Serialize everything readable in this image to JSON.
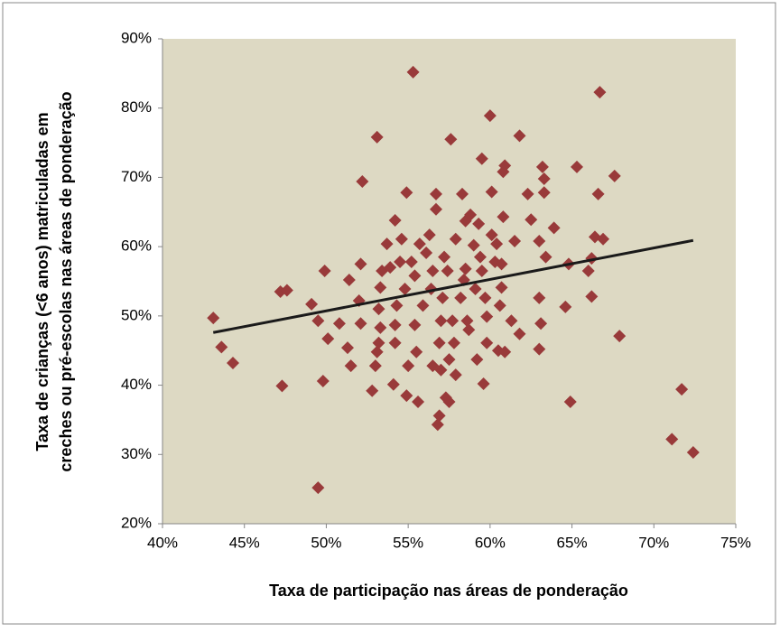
{
  "chart_data": {
    "type": "scatter",
    "xlabel": "Taxa de participação nas áreas de ponderação",
    "ylabel": [
      "Taxa de crianças (<6 anos) matriculadas em",
      "creches ou pré-escolas nas áreas de ponderação"
    ],
    "color": "#993a3a",
    "x": [
      43.1,
      43.6,
      44.3,
      47.3,
      47.2,
      47.6,
      49.5,
      49.8,
      49.9,
      49.1,
      49.5,
      50.1,
      50.8,
      51.3,
      51.5,
      51.4,
      52.1,
      52.2,
      52.0,
      52.1,
      52.8,
      53.1,
      53.0,
      53.1,
      53.2,
      53.3,
      53.2,
      53.3,
      53.4,
      53.7,
      53.9,
      54.1,
      54.3,
      54.2,
      54.2,
      54.2,
      54.5,
      54.6,
      54.8,
      54.9,
      54.9,
      55.0,
      55.2,
      55.3,
      55.4,
      55.5,
      55.4,
      55.6,
      55.7,
      55.9,
      56.1,
      56.3,
      56.4,
      56.5,
      56.5,
      56.7,
      56.7,
      56.8,
      56.9,
      57.0,
      56.9,
      57.0,
      57.1,
      57.2,
      57.4,
      57.3,
      57.5,
      57.5,
      57.6,
      57.7,
      57.9,
      57.8,
      57.9,
      58.2,
      58.3,
      58.4,
      58.5,
      58.5,
      58.6,
      58.7,
      58.8,
      59.0,
      59.2,
      59.1,
      59.3,
      59.4,
      59.5,
      59.6,
      59.5,
      59.7,
      59.8,
      59.8,
      60.1,
      60.0,
      60.1,
      60.3,
      60.4,
      60.5,
      60.6,
      60.7,
      60.7,
      60.8,
      60.8,
      60.9,
      60.9,
      61.3,
      61.5,
      61.8,
      61.8,
      62.3,
      62.5,
      63.0,
      63.0,
      63.0,
      63.1,
      63.2,
      63.3,
      63.3,
      63.4,
      63.9,
      64.6,
      64.9,
      64.8,
      65.3,
      66.0,
      66.2,
      66.2,
      66.4,
      66.6,
      66.7,
      66.9,
      67.6,
      67.9,
      71.1,
      71.7,
      72.4
    ],
    "values": [
      49.7,
      45.5,
      43.2,
      39.9,
      53.5,
      53.7,
      25.2,
      40.6,
      56.5,
      51.7,
      49.3,
      46.7,
      48.9,
      45.4,
      42.8,
      55.2,
      57.5,
      69.4,
      52.2,
      48.9,
      39.2,
      75.8,
      42.8,
      44.8,
      46.1,
      48.3,
      51.0,
      54.1,
      56.5,
      60.4,
      57.0,
      40.1,
      51.5,
      46.1,
      48.7,
      63.8,
      57.8,
      61.1,
      53.9,
      38.5,
      67.8,
      42.8,
      57.8,
      85.2,
      48.7,
      44.8,
      55.8,
      37.6,
      60.4,
      51.5,
      59.1,
      61.7,
      53.9,
      56.5,
      42.8,
      65.4,
      67.6,
      34.3,
      35.6,
      42.2,
      46.1,
      49.3,
      52.6,
      58.5,
      56.5,
      38.2,
      43.7,
      37.6,
      75.5,
      49.3,
      61.1,
      46.1,
      41.5,
      52.6,
      67.6,
      55.2,
      63.7,
      56.8,
      49.3,
      48.0,
      64.6,
      60.2,
      43.7,
      53.9,
      63.3,
      58.5,
      72.7,
      40.2,
      56.5,
      52.6,
      49.9,
      46.1,
      67.9,
      78.9,
      61.7,
      57.8,
      60.4,
      45.0,
      51.5,
      54.1,
      57.5,
      64.3,
      70.8,
      71.7,
      44.8,
      49.3,
      60.8,
      76.0,
      47.4,
      67.6,
      63.9,
      60.8,
      52.6,
      45.2,
      48.9,
      71.5,
      69.8,
      67.8,
      58.5,
      62.7,
      51.3,
      37.6,
      57.5,
      71.5,
      56.5,
      52.8,
      58.3,
      61.4,
      67.6,
      82.3,
      61.1,
      70.2,
      47.1,
      32.2,
      39.4,
      30.3
    ],
    "trendline": {
      "color": "#1a1a1a",
      "x": [
        43.1,
        72.4
      ],
      "values": [
        47.6,
        60.9
      ]
    },
    "xlim": [
      40,
      75
    ],
    "xticks": [
      {
        "value": 40,
        "label": "40%"
      },
      {
        "value": 45,
        "label": "45%"
      },
      {
        "value": 50,
        "label": "50%"
      },
      {
        "value": 55,
        "label": "55%"
      },
      {
        "value": 60,
        "label": "60%"
      },
      {
        "value": 65,
        "label": "65%"
      },
      {
        "value": 70,
        "label": "70%"
      },
      {
        "value": 75,
        "label": "75%"
      }
    ],
    "ylim": [
      20,
      90
    ],
    "yticks": [
      {
        "value": 20,
        "label": "20%"
      },
      {
        "value": 30,
        "label": "30%"
      },
      {
        "value": 40,
        "label": "40%"
      },
      {
        "value": 50,
        "label": "50%"
      },
      {
        "value": 60,
        "label": "60%"
      },
      {
        "value": 70,
        "label": "70%"
      },
      {
        "value": 80,
        "label": "80%"
      },
      {
        "value": 90,
        "label": "90%"
      }
    ],
    "plot_background": "#ddd9c3"
  }
}
